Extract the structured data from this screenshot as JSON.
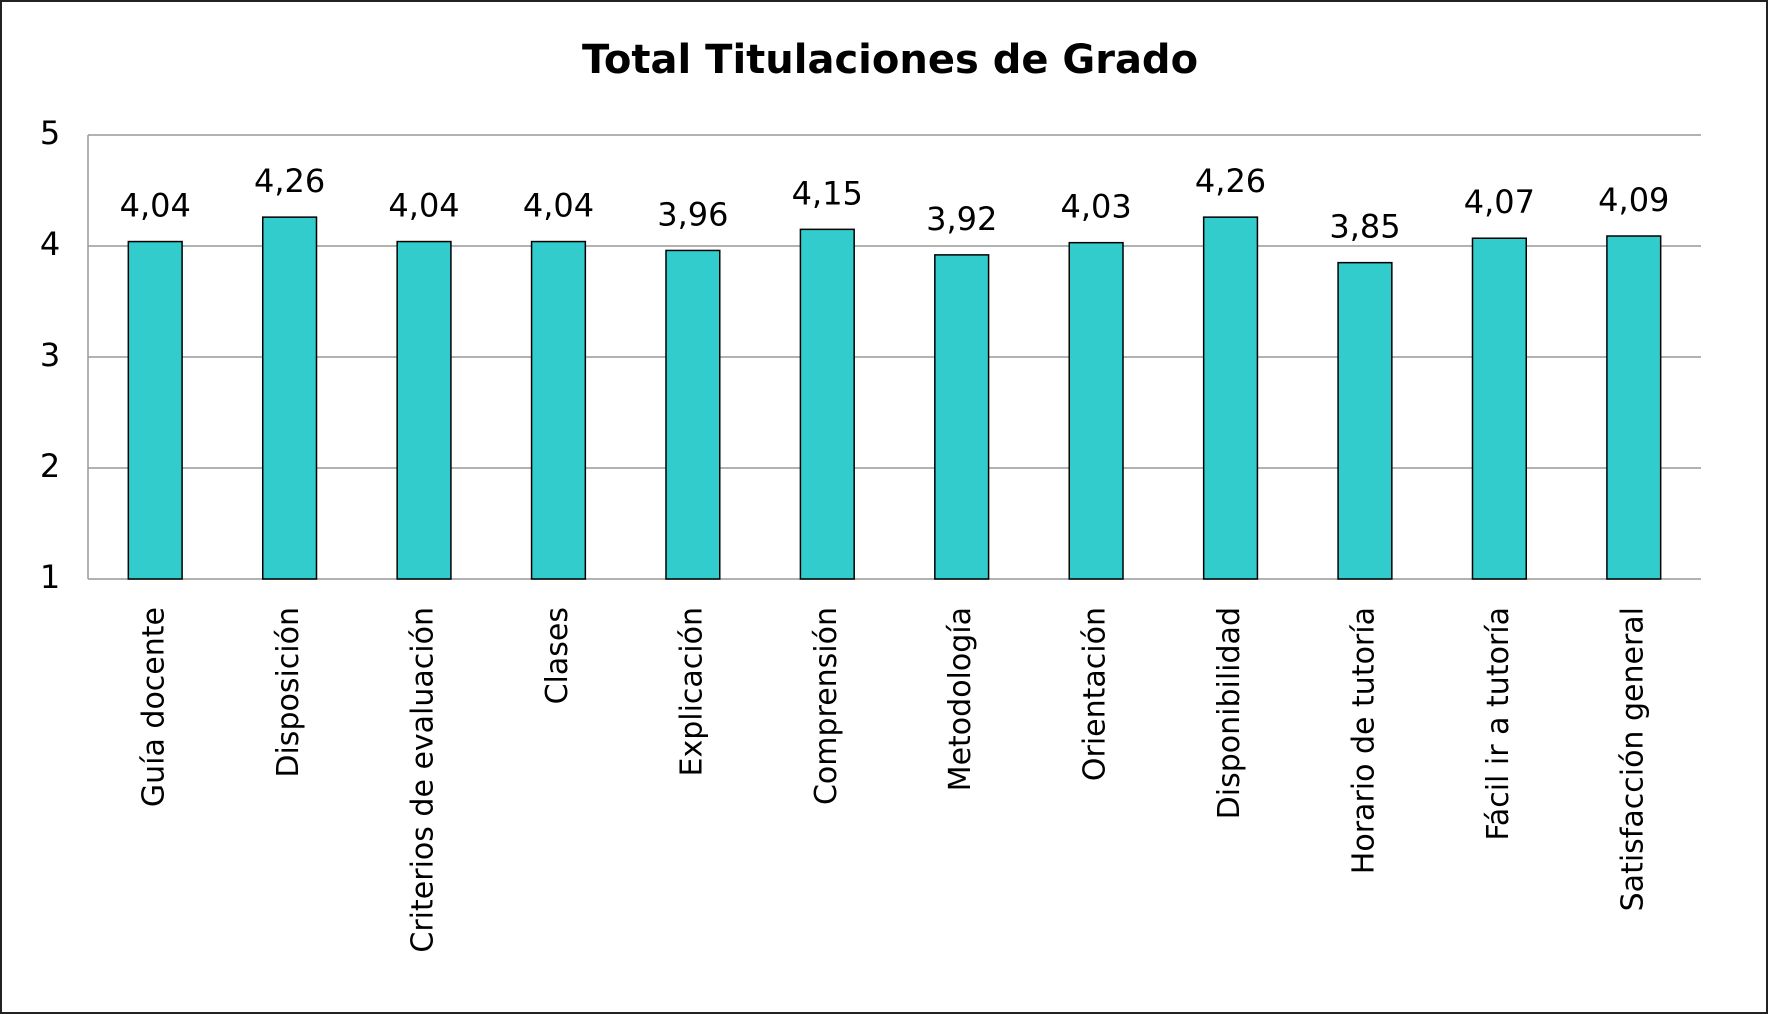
{
  "chart_data": {
    "type": "bar",
    "title": "Total Titulaciones de Grado",
    "categories": [
      "Guía docente",
      "Disposición",
      "Criterios de evaluación",
      "Clases",
      "Explicación",
      "Comprensión",
      "Metodología",
      "Orientación",
      "Disponibilidad",
      "Horario de tutoría",
      "Fácil ir a tutoría",
      "Satisfacción general"
    ],
    "values": [
      4.04,
      4.26,
      4.04,
      4.04,
      3.96,
      4.15,
      3.92,
      4.03,
      4.26,
      3.85,
      4.07,
      4.09
    ],
    "value_labels": [
      "4,04",
      "4,26",
      "4,04",
      "4,04",
      "3,96",
      "4,15",
      "3,92",
      "4,03",
      "4,26",
      "3,85",
      "4,07",
      "4,09"
    ],
    "color": "#33cccc",
    "ylim": [
      1,
      5
    ],
    "yticks": [
      1,
      2,
      3,
      4,
      5
    ],
    "grid": true
  }
}
